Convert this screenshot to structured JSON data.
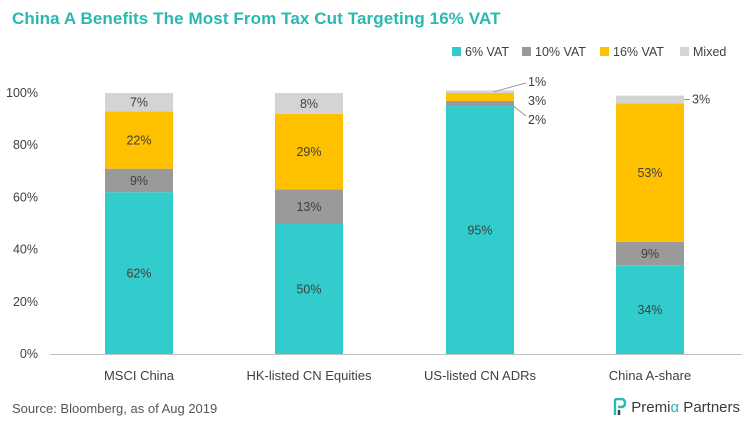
{
  "title": "China A Benefits The Most From Tax Cut Targeting 16% VAT",
  "footer": {
    "source": "Source: Bloomberg, as of Aug 2019",
    "brand_left": "Premi",
    "brand_alpha": "α",
    "brand_right": " Partners"
  },
  "colors": {
    "title": "#2cb8b0",
    "vat6": "#33cccc",
    "vat10": "#9a9a9a",
    "vat16": "#ffc000",
    "mixed": "#d4d4d4"
  },
  "chart_data": {
    "type": "bar",
    "stacked": true,
    "categories": [
      "MSCI China",
      "HK-listed CN Equities",
      "US-listed CN ADRs",
      "China A-share"
    ],
    "series": [
      {
        "name": "6% VAT",
        "values": [
          62,
          50,
          95,
          34
        ],
        "labels": [
          "62%",
          "50%",
          "95%",
          "34%"
        ]
      },
      {
        "name": "10% VAT",
        "values": [
          9,
          13,
          2,
          9
        ],
        "labels": [
          "9%",
          "13%",
          "2%",
          "9%"
        ]
      },
      {
        "name": "16% VAT",
        "values": [
          22,
          29,
          3,
          53
        ],
        "labels": [
          "22%",
          "29%",
          "3%",
          "53%"
        ]
      },
      {
        "name": "Mixed",
        "values": [
          7,
          8,
          1,
          3
        ],
        "labels": [
          "7%",
          "8%",
          "1%",
          "3%"
        ]
      }
    ],
    "yticks": [
      "0%",
      "20%",
      "40%",
      "60%",
      "80%",
      "100%"
    ],
    "ylim": [
      0,
      100
    ],
    "grid": false,
    "legend": "top-right"
  }
}
